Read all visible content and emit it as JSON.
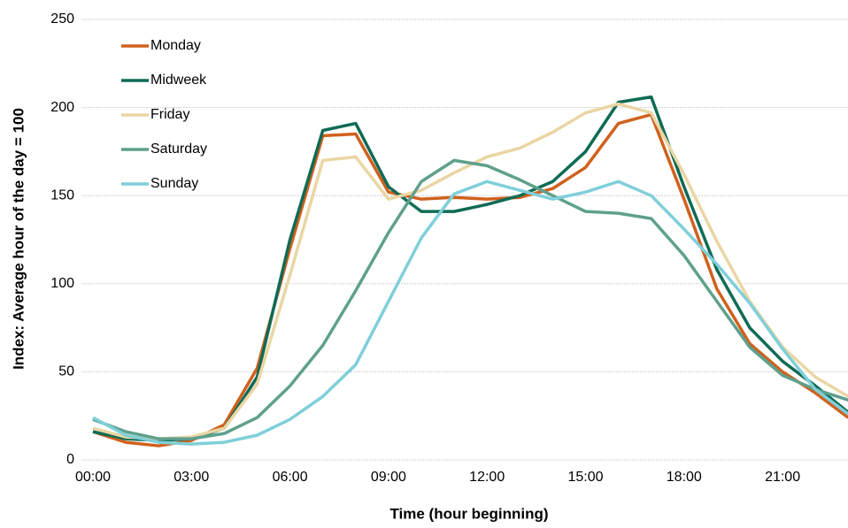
{
  "chart_data": {
    "type": "line",
    "x_label": "Time (hour beginning)",
    "y_label": "Index: Average hour of the day = 100",
    "categories": [
      "00:00",
      null,
      null,
      "03:00",
      null,
      null,
      "06:00",
      null,
      null,
      "09:00",
      null,
      null,
      "12:00",
      null,
      null,
      "15:00",
      null,
      null,
      "18:00",
      null,
      null,
      "21:00",
      null,
      null
    ],
    "series": [
      {
        "name": "Monday",
        "color": "#d0611d",
        "values": [
          16,
          10,
          8,
          11,
          20,
          52,
          120,
          184,
          185,
          152,
          148,
          149,
          148,
          149,
          154,
          166,
          191,
          196,
          148,
          97,
          66,
          50,
          38,
          24
        ]
      },
      {
        "name": "Midweek",
        "color": "#0f6b55",
        "values": [
          16,
          12,
          11,
          12,
          18,
          47,
          125,
          187,
          191,
          155,
          141,
          141,
          145,
          150,
          158,
          175,
          203,
          206,
          155,
          108,
          75,
          56,
          42,
          27
        ]
      },
      {
        "name": "Friday",
        "color": "#ead6a4",
        "values": [
          18,
          13,
          12,
          13,
          18,
          43,
          105,
          170,
          172,
          148,
          153,
          163,
          172,
          177,
          186,
          197,
          202,
          197,
          162,
          124,
          90,
          64,
          47,
          36
        ]
      },
      {
        "name": "Saturday",
        "color": "#5fa08d",
        "values": [
          23,
          16,
          12,
          12,
          15,
          24,
          42,
          65,
          96,
          129,
          158,
          170,
          167,
          159,
          150,
          141,
          140,
          137,
          116,
          90,
          64,
          48,
          40,
          34
        ]
      },
      {
        "name": "Sunday",
        "color": "#7fcfd9",
        "values": [
          24,
          14,
          10,
          9,
          10,
          14,
          23,
          36,
          54,
          90,
          126,
          151,
          158,
          153,
          148,
          152,
          158,
          150,
          131,
          111,
          89,
          63,
          40,
          26
        ]
      }
    ],
    "ylim": [
      0,
      250
    ],
    "yticks": [
      0,
      50,
      100,
      150,
      200,
      250
    ],
    "grid": true,
    "legend": "upper left"
  }
}
